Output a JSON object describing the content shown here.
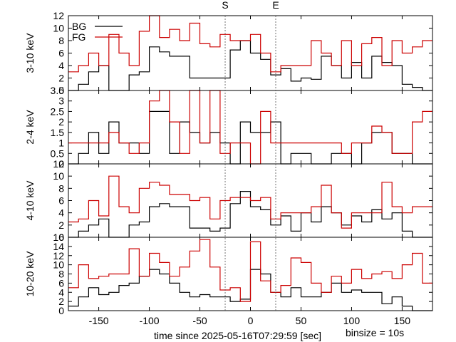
{
  "chart_data": {
    "type": "line",
    "step": true,
    "xlabel": "time since 2025-05-16T07:29:59 [sec]",
    "binsize_label": "binsize = 10s",
    "xlim": [
      -180,
      180
    ],
    "x_ticks": [
      -150,
      -100,
      -50,
      0,
      50,
      100,
      150
    ],
    "markers": [
      {
        "label": "S",
        "x": -25
      },
      {
        "label": "E",
        "x": 25
      }
    ],
    "legend": {
      "position": "top-left",
      "entries": [
        {
          "name": "BG",
          "color": "#000000"
        },
        {
          "name": "FG",
          "color": "#cc0000"
        }
      ]
    },
    "bin_edges": [
      -180,
      -170,
      -160,
      -150,
      -140,
      -130,
      -120,
      -110,
      -100,
      -90,
      -80,
      -70,
      -60,
      -50,
      -40,
      -30,
      -20,
      -10,
      0,
      10,
      20,
      30,
      40,
      50,
      60,
      70,
      80,
      90,
      100,
      110,
      120,
      130,
      140,
      150,
      160,
      170,
      180
    ],
    "panels": [
      {
        "ylabel": "3-10 keV",
        "ylim": [
          0,
          12
        ],
        "y_ticks": [
          0,
          2,
          4,
          6,
          8,
          10,
          12
        ],
        "series": [
          {
            "name": "BG",
            "color": "#000000",
            "values": [
              0,
              1,
              3,
              4,
              0,
              0,
              2.5,
              3,
              7,
              6.2,
              5.5,
              5.5,
              2,
              2,
              2,
              2,
              6.5,
              8,
              6,
              5,
              2.5,
              3.5,
              1.5,
              2,
              1.8,
              5.5,
              4,
              2,
              4.5,
              2,
              5.5,
              4.5,
              4,
              1,
              0.5,
              0
            ]
          },
          {
            "name": "FG",
            "color": "#cc0000",
            "values": [
              3,
              4,
              6,
              4,
              9,
              6,
              4,
              9.5,
              12,
              8.5,
              9.8,
              8,
              10.8,
              7.5,
              7,
              9,
              8,
              8,
              9,
              6,
              3,
              4,
              4,
              4,
              8,
              6,
              4,
              8,
              4,
              7.5,
              8.5,
              4,
              8,
              6,
              7,
              8
            ]
          }
        ]
      },
      {
        "ylabel": "2-4 keV",
        "ylim": [
          0,
          3.5
        ],
        "y_ticks": [
          0,
          0.5,
          1,
          1.5,
          2,
          2.5,
          3,
          3.5
        ],
        "series": [
          {
            "name": "BG",
            "color": "#000000",
            "values": [
              0,
              0.5,
              1.5,
              0.5,
              2,
              1,
              1,
              0.5,
              2.5,
              2.5,
              0.5,
              2,
              1.5,
              1,
              1.5,
              1,
              0,
              2,
              1.5,
              1.5,
              2,
              0,
              0.5,
              0.5,
              0,
              0,
              0.5,
              0.5,
              0,
              1,
              1.5,
              1.5,
              0.5,
              0.5,
              0,
              0
            ]
          },
          {
            "name": "FG",
            "color": "#cc0000",
            "values": [
              1,
              1,
              1,
              1,
              1.5,
              1,
              0.5,
              1,
              3,
              3.5,
              2,
              0.5,
              3.5,
              1,
              3.5,
              0.5,
              1,
              1,
              0,
              2.5,
              1,
              1,
              1,
              1,
              1,
              1,
              1,
              0.5,
              1,
              1,
              1.8,
              1.5,
              0.5,
              0.5,
              2,
              2.5
            ]
          }
        ]
      },
      {
        "ylabel": "4-10 keV",
        "ylim": [
          0,
          12
        ],
        "y_ticks": [
          0,
          2,
          4,
          6,
          8,
          10,
          12
        ],
        "series": [
          {
            "name": "BG",
            "color": "#000000",
            "values": [
              0,
              1,
              2,
              3,
              0,
              0,
              2,
              2.5,
              5,
              5.5,
              5,
              5,
              1.5,
              1.5,
              1,
              1.5,
              5.5,
              7.5,
              5,
              4.5,
              2,
              3.5,
              1,
              4,
              2.5,
              5,
              4,
              2,
              3.5,
              2.5,
              4.5,
              3,
              4,
              1,
              0,
              0
            ]
          },
          {
            "name": "FG",
            "color": "#cc0000",
            "values": [
              2.5,
              3,
              6,
              3.5,
              10,
              5,
              4,
              8,
              9,
              8.5,
              7,
              7,
              6,
              6.5,
              3,
              6,
              6.5,
              6.5,
              6,
              6.5,
              3,
              4,
              4,
              4,
              5,
              8.5,
              4,
              1.5,
              4,
              4,
              4,
              9,
              5,
              4,
              5,
              5
            ]
          }
        ]
      },
      {
        "ylabel": "10-20 keV",
        "ylim": [
          0,
          16
        ],
        "y_ticks": [
          0,
          2,
          4,
          6,
          8,
          10,
          12,
          14,
          16
        ],
        "series": [
          {
            "name": "BG",
            "color": "#000000",
            "values": [
              1,
              3,
              5,
              3.5,
              4,
              5.5,
              6,
              7.5,
              9,
              8,
              6,
              4,
              3,
              3.5,
              3,
              3,
              2,
              2.5,
              9,
              8,
              4,
              3,
              5,
              3,
              3,
              4,
              6,
              4,
              4.5,
              4,
              4,
              1.5,
              3,
              1,
              0,
              0
            ]
          },
          {
            "name": "FG",
            "color": "#cc0000",
            "values": [
              5,
              10,
              7,
              7.5,
              8,
              8,
              13.5,
              7.5,
              12.5,
              10.5,
              7.5,
              9.5,
              13,
              15.5,
              9.5,
              4.5,
              5,
              2,
              15,
              6.5,
              4,
              5.5,
              11.5,
              10.5,
              6,
              4,
              7.5,
              6,
              9,
              7,
              8,
              8.5,
              7,
              10,
              12.5,
              6
            ]
          }
        ]
      }
    ]
  }
}
